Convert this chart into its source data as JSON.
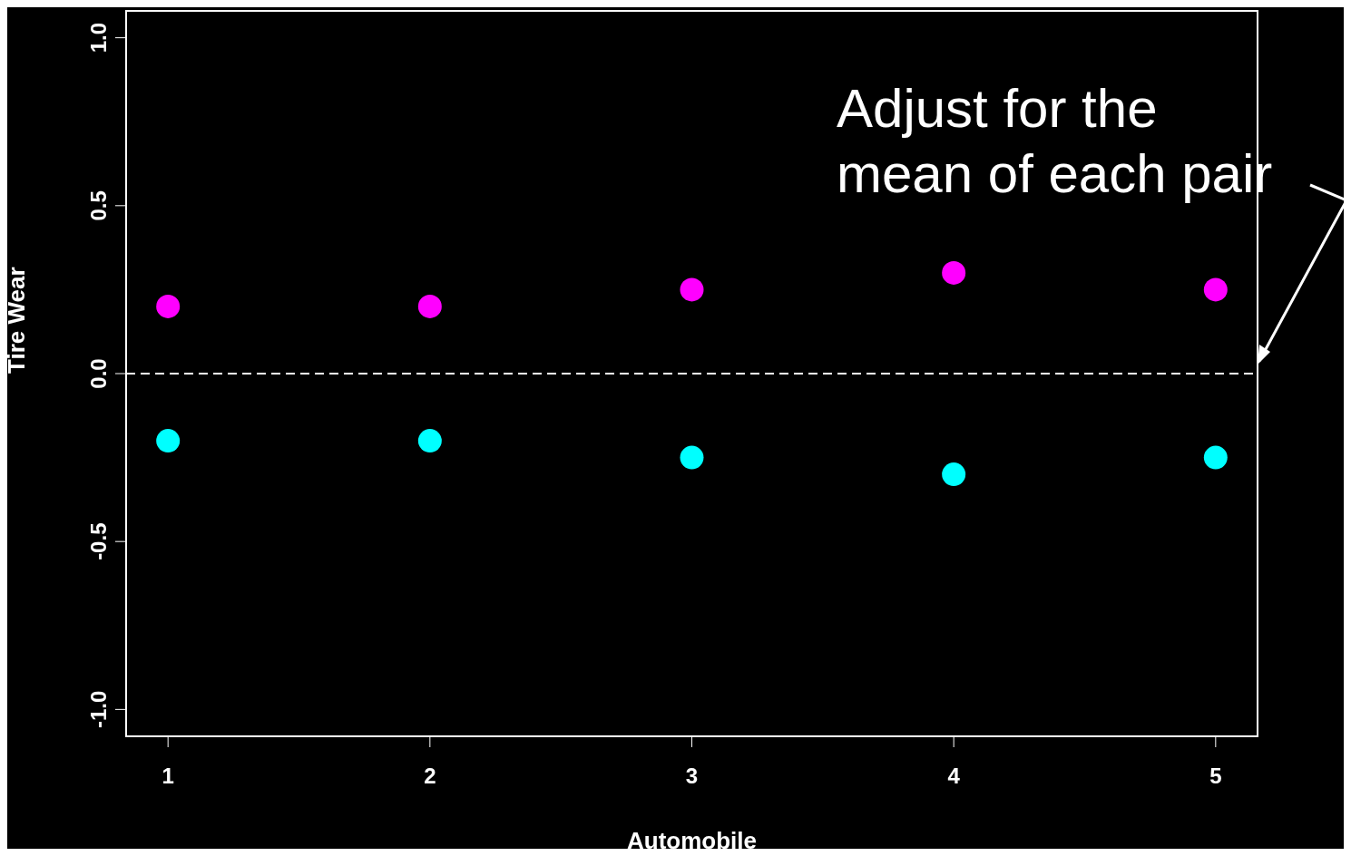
{
  "chart_data": {
    "type": "scatter",
    "xlabel": "Automobile",
    "ylabel": "Tire Wear",
    "x": [
      1,
      2,
      3,
      4,
      5
    ],
    "series": [
      {
        "color": "#ff00ff",
        "values": [
          0.2,
          0.2,
          0.25,
          0.3,
          0.25
        ]
      },
      {
        "color": "#00ffff",
        "values": [
          -0.2,
          -0.2,
          -0.25,
          -0.3,
          -0.25
        ]
      }
    ],
    "xlim": [
      0.84,
      5.16
    ],
    "xticks": [
      1,
      2,
      3,
      4,
      5
    ],
    "ylim": [
      -1.08,
      1.08
    ],
    "yticks": [
      {
        "value": -1,
        "label": "-1.0"
      },
      {
        "value": -0.5,
        "label": "-0.5"
      },
      {
        "value": 0,
        "label": "0.0"
      },
      {
        "value": 0.5,
        "label": "0.5"
      },
      {
        "value": 1,
        "label": "1.0"
      }
    ],
    "ref_lines": [
      {
        "axis": "y",
        "value": 0,
        "color": "#ffffff",
        "line_style": "dashed"
      }
    ],
    "annotations": [
      "Adjust for the\nmean of each pair"
    ],
    "grid": false,
    "marker": "circle"
  }
}
